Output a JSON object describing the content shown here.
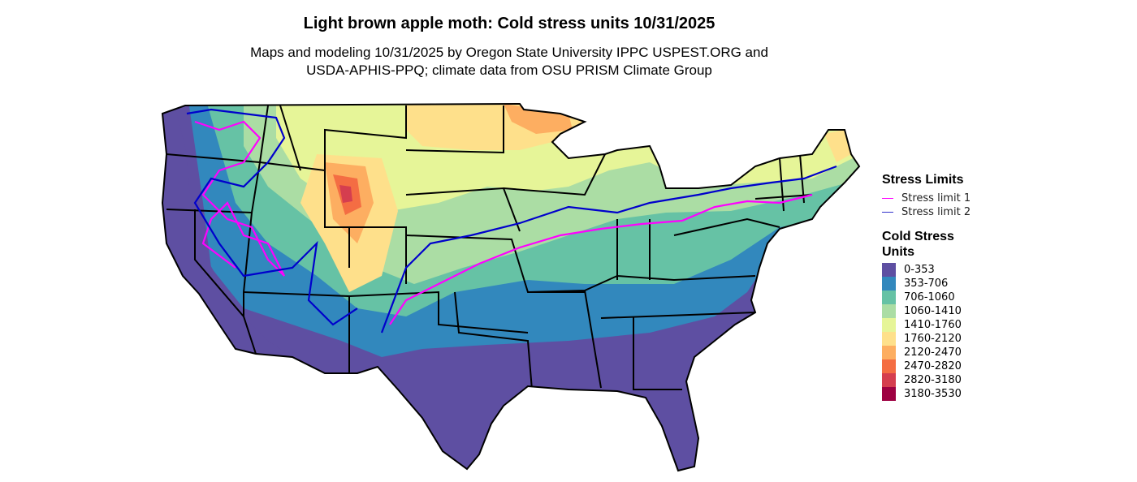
{
  "title": "Light brown apple moth: Cold stress units 10/31/2025",
  "subtitle_line1": "Maps and modeling 10/31/2025 by Oregon State University IPPC USPEST.ORG and",
  "subtitle_line2": "USDA-APHIS-PPQ; climate data from OSU PRISM Climate Group",
  "legend": {
    "stress_title": "Stress Limits",
    "stress_limits": [
      {
        "label": "Stress limit 1",
        "color": "#FF00FF"
      },
      {
        "label": "Stress limit 2",
        "color": "#0000CC"
      }
    ],
    "units_title_line1": "Cold Stress",
    "units_title_line2": "Units",
    "classes": [
      {
        "label": "0-353",
        "color": "#5E4FA2"
      },
      {
        "label": "353-706",
        "color": "#3288BD"
      },
      {
        "label": "706-1060",
        "color": "#66C2A5"
      },
      {
        "label": "1060-1410",
        "color": "#ABDDA4"
      },
      {
        "label": "1410-1760",
        "color": "#E6F598"
      },
      {
        "label": "1760-2120",
        "color": "#FEE08B"
      },
      {
        "label": "2120-2470",
        "color": "#FDAE61"
      },
      {
        "label": "2470-2820",
        "color": "#F46D43"
      },
      {
        "label": "2820-3180",
        "color": "#D53E4F"
      },
      {
        "label": "3180-3530",
        "color": "#9E0142"
      }
    ]
  }
}
